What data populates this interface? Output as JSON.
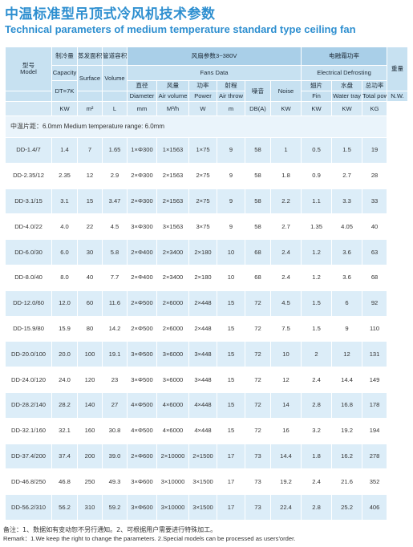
{
  "title_cn": "中温标准型吊顶式冷风机技术参数",
  "title_en": "Technical parameters of medium temperature standard type ceiling fan",
  "headers": {
    "model_cn": "型号",
    "model_en": "Model",
    "capacity_cn": "制冷量",
    "capacity_en": "Capacity",
    "capacity_spec": "DT=7K",
    "surface_cn": "蒸发面积",
    "surface_en": "Surface",
    "volume_cn": "管道容积",
    "volume_en": "Volume",
    "fans_cn": "风扇参数3~380V",
    "fans_en": "Fans Data",
    "diameter_cn": "直径",
    "diameter_en": "Diameter",
    "airvol_cn": "风量",
    "airvol_en": "Air volume",
    "power_cn": "功率",
    "power_en": "Power",
    "airthrow_cn": "射程",
    "airthrow_en": "Air throw",
    "noise_cn": "噪音",
    "noise_en": "Noise",
    "defrost_cn": "电融霜功率",
    "defrost_en": "Electrical Defrosting",
    "fin_cn": "翅片",
    "fin_en": "Fin",
    "tray_cn": "水盘",
    "tray_en": "Water tray",
    "total_cn": "总功率",
    "total_en": "Total power",
    "weight_cn": "重量",
    "weight_en": "N.W."
  },
  "units": {
    "capacity": "KW",
    "surface": "m²",
    "volume": "L",
    "diameter": "mm",
    "airvol": "M³/h",
    "power": "W",
    "airthrow": "m",
    "noise": "DB(A)",
    "fin": "KW",
    "tray": "KW",
    "total": "KW",
    "weight": "KG"
  },
  "fin_pitch_note": "中温片距：6.0mm   Medium temperature range: 6.0mm",
  "rows": [
    {
      "model": "DD-1.4/7",
      "capacity": "1.4",
      "surface": "7",
      "volume": "1.65",
      "diameter": "1×Φ300",
      "airvol": "1×1563",
      "power": "1×75",
      "airthrow": "9",
      "noise": "58",
      "fin": "1",
      "tray": "0.5",
      "total": "1.5",
      "weight": "19"
    },
    {
      "model": "DD-2.35/12",
      "capacity": "2.35",
      "surface": "12",
      "volume": "2.9",
      "diameter": "2×Φ300",
      "airvol": "2×1563",
      "power": "2×75",
      "airthrow": "9",
      "noise": "58",
      "fin": "1.8",
      "tray": "0.9",
      "total": "2.7",
      "weight": "28"
    },
    {
      "model": "DD-3.1/15",
      "capacity": "3.1",
      "surface": "15",
      "volume": "3.47",
      "diameter": "2×Φ300",
      "airvol": "2×1563",
      "power": "2×75",
      "airthrow": "9",
      "noise": "58",
      "fin": "2.2",
      "tray": "1.1",
      "total": "3.3",
      "weight": "33"
    },
    {
      "model": "DD-4.0/22",
      "capacity": "4.0",
      "surface": "22",
      "volume": "4.5",
      "diameter": "3×Φ300",
      "airvol": "3×1563",
      "power": "3×75",
      "airthrow": "9",
      "noise": "58",
      "fin": "2.7",
      "tray": "1.35",
      "total": "4.05",
      "weight": "40"
    },
    {
      "model": "DD-6.0/30",
      "capacity": "6.0",
      "surface": "30",
      "volume": "5.8",
      "diameter": "2×Φ400",
      "airvol": "2×3400",
      "power": "2×180",
      "airthrow": "10",
      "noise": "68",
      "fin": "2.4",
      "tray": "1.2",
      "total": "3.6",
      "weight": "63"
    },
    {
      "model": "DD-8.0/40",
      "capacity": "8.0",
      "surface": "40",
      "volume": "7.7",
      "diameter": "2×Φ400",
      "airvol": "2×3400",
      "power": "2×180",
      "airthrow": "10",
      "noise": "68",
      "fin": "2.4",
      "tray": "1.2",
      "total": "3.6",
      "weight": "68"
    },
    {
      "model": "DD-12.0/60",
      "capacity": "12.0",
      "surface": "60",
      "volume": "11.6",
      "diameter": "2×Φ500",
      "airvol": "2×6000",
      "power": "2×448",
      "airthrow": "15",
      "noise": "72",
      "fin": "4.5",
      "tray": "1.5",
      "total": "6",
      "weight": "92"
    },
    {
      "model": "DD-15.9/80",
      "capacity": "15.9",
      "surface": "80",
      "volume": "14.2",
      "diameter": "2×Φ500",
      "airvol": "2×6000",
      "power": "2×448",
      "airthrow": "15",
      "noise": "72",
      "fin": "7.5",
      "tray": "1.5",
      "total": "9",
      "weight": "110"
    },
    {
      "model": "DD-20.0/100",
      "capacity": "20.0",
      "surface": "100",
      "volume": "19.1",
      "diameter": "3×Φ500",
      "airvol": "3×6000",
      "power": "3×448",
      "airthrow": "15",
      "noise": "72",
      "fin": "10",
      "tray": "2",
      "total": "12",
      "weight": "131"
    },
    {
      "model": "DD-24.0/120",
      "capacity": "24.0",
      "surface": "120",
      "volume": "23",
      "diameter": "3×Φ500",
      "airvol": "3×6000",
      "power": "3×448",
      "airthrow": "15",
      "noise": "72",
      "fin": "12",
      "tray": "2.4",
      "total": "14.4",
      "weight": "149"
    },
    {
      "model": "DD-28.2/140",
      "capacity": "28.2",
      "surface": "140",
      "volume": "27",
      "diameter": "4×Φ500",
      "airvol": "4×6000",
      "power": "4×448",
      "airthrow": "15",
      "noise": "72",
      "fin": "14",
      "tray": "2.8",
      "total": "16.8",
      "weight": "178"
    },
    {
      "model": "DD-32.1/160",
      "capacity": "32.1",
      "surface": "160",
      "volume": "30.8",
      "diameter": "4×Φ500",
      "airvol": "4×6000",
      "power": "4×448",
      "airthrow": "15",
      "noise": "72",
      "fin": "16",
      "tray": "3.2",
      "total": "19.2",
      "weight": "194"
    },
    {
      "model": "DD-37.4/200",
      "capacity": "37.4",
      "surface": "200",
      "volume": "39.0",
      "diameter": "2×Φ600",
      "airvol": "2×10000",
      "power": "2×1500",
      "airthrow": "17",
      "noise": "73",
      "fin": "14.4",
      "tray": "1.8",
      "total": "16.2",
      "weight": "278"
    },
    {
      "model": "DD-46.8/250",
      "capacity": "46.8",
      "surface": "250",
      "volume": "49.3",
      "diameter": "3×Φ600",
      "airvol": "3×10000",
      "power": "3×1500",
      "airthrow": "17",
      "noise": "73",
      "fin": "19.2",
      "tray": "2.4",
      "total": "21.6",
      "weight": "352"
    },
    {
      "model": "DD-56.2/310",
      "capacity": "56.2",
      "surface": "310",
      "volume": "59.2",
      "diameter": "3×Φ600",
      "airvol": "3×10000",
      "power": "3×1500",
      "airthrow": "17",
      "noise": "73",
      "fin": "22.4",
      "tray": "2.8",
      "total": "25.2",
      "weight": "406"
    }
  ],
  "remark_cn": "备注：1、数据如有变动恕不另行通知。2、可根据用户需要进行特殊加工。",
  "remark_en": "Remark：1.We keep the right to change the parameters. 2.Special models can be processed as users'order."
}
